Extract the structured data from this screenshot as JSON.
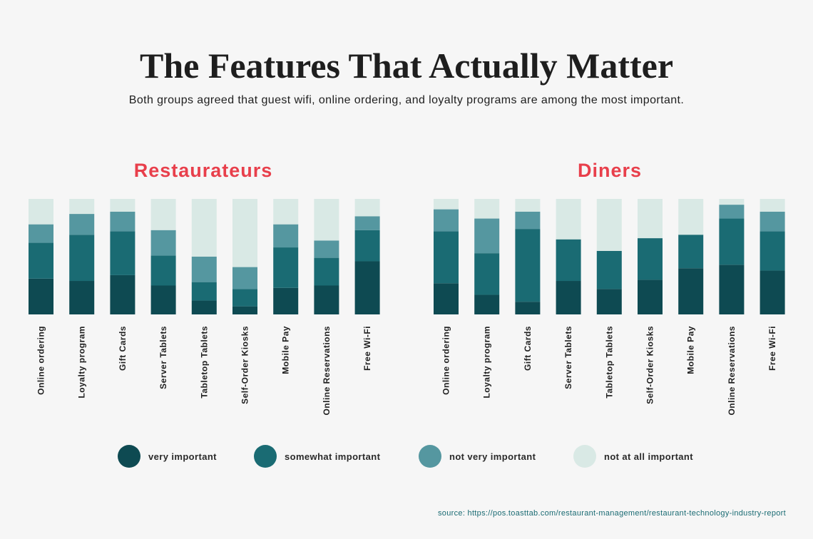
{
  "header": {
    "title": "The Features That Actually Matter",
    "subtitle": "Both groups agreed that guest wifi, online ordering, and loyalty programs are among the most important."
  },
  "colors": {
    "very_important": "#0e4a52",
    "somewhat_important": "#1a6b73",
    "not_very_important": "#5597a0",
    "not_at_all_important": "#d9e9e5",
    "panel_title": "#e83f4b",
    "source_text": "#1a6b73"
  },
  "legend": [
    {
      "label": "very important",
      "color": "#0e4a52"
    },
    {
      "label": "somewhat important",
      "color": "#1a6b73"
    },
    {
      "label": "not very important",
      "color": "#5597a0"
    },
    {
      "label": "not at all important",
      "color": "#d9e9e5"
    }
  ],
  "source": "source: https://pos.toasttab.com/restaurant-management/restaurant-technology-industry-report",
  "chart_data": [
    {
      "type": "bar",
      "stacked": true,
      "title": "Restaurateurs",
      "categories": [
        "Online ordering",
        "Loyalty program",
        "Gift Cards",
        "Server Tablets",
        "Tabletop Tablets",
        "Self-Order Kiosks",
        "Mobile Pay",
        "Online Reservations",
        "Free Wi-Fi"
      ],
      "series": [
        {
          "name": "very important",
          "values": [
            31,
            29,
            34,
            25,
            12,
            7,
            23,
            25,
            46
          ]
        },
        {
          "name": "somewhat important",
          "values": [
            31,
            40,
            38,
            26,
            16,
            15,
            35,
            24,
            27
          ]
        },
        {
          "name": "not very important",
          "values": [
            16,
            18,
            17,
            22,
            22,
            19,
            20,
            15,
            12
          ]
        },
        {
          "name": "not at all important",
          "values": [
            22,
            13,
            11,
            27,
            50,
            59,
            22,
            36,
            15
          ]
        }
      ],
      "ylim": [
        0,
        100
      ]
    },
    {
      "type": "bar",
      "stacked": true,
      "title": "Diners",
      "categories": [
        "Online ordering",
        "Loyalty program",
        "Gift Cards",
        "Server Tablets",
        "Tabletop Tablets",
        "Self-Order Kiosks",
        "Mobile Pay",
        "Online Reservations",
        "Free Wi-Fi"
      ],
      "series": [
        {
          "name": "very important",
          "values": [
            27,
            17,
            11,
            29,
            22,
            30,
            40,
            43,
            38
          ]
        },
        {
          "name": "somewhat important",
          "values": [
            45,
            36,
            63,
            36,
            33,
            36,
            29,
            40,
            34
          ]
        },
        {
          "name": "not very important",
          "values": [
            19,
            30,
            15,
            0,
            0,
            0,
            0,
            12,
            17
          ]
        },
        {
          "name": "not at all important",
          "values": [
            9,
            17,
            11,
            35,
            45,
            34,
            31,
            5,
            11
          ]
        }
      ],
      "ylim": [
        0,
        100
      ]
    }
  ]
}
